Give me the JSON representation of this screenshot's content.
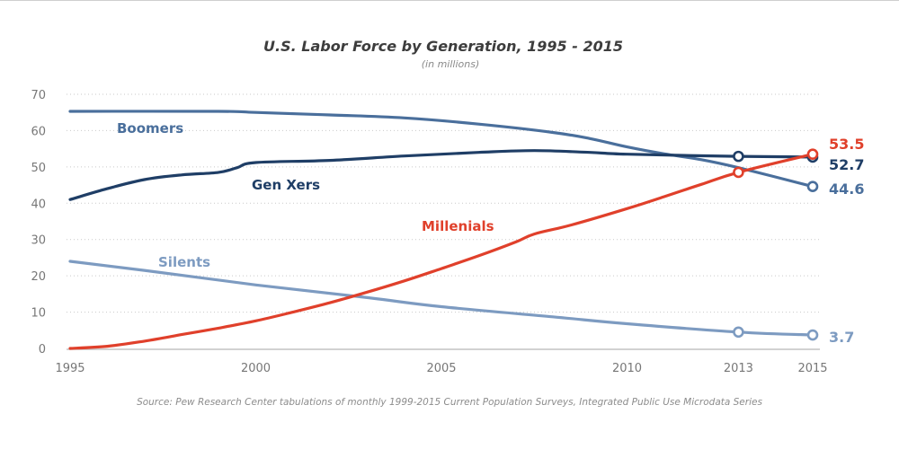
{
  "chart_data": {
    "type": "line",
    "title": "U.S. Labor Force by Generation, 1995 - 2015",
    "subtitle": "(in millions)",
    "xlabel": "",
    "ylabel": "",
    "xlim": [
      1995,
      2015
    ],
    "ylim": [
      0,
      70
    ],
    "x_ticks": [
      1995,
      2000,
      2005,
      2010,
      2013,
      2015
    ],
    "y_ticks": [
      0,
      10,
      20,
      30,
      40,
      50,
      60,
      70
    ],
    "grid": "horizontal-dotted",
    "legend": "inline-labels",
    "series": [
      {
        "name": "Boomers",
        "key": "boomers",
        "color": "#4a6f9c",
        "x": [
          1995,
          1999,
          2000,
          2002,
          2004,
          2006,
          2008,
          2009,
          2010,
          2011,
          2012,
          2013,
          2015
        ],
        "values": [
          65.3,
          65.3,
          65.0,
          64.3,
          63.5,
          61.8,
          59.5,
          57.8,
          55.5,
          53.6,
          52.0,
          49.8,
          44.6
        ],
        "markers": [
          {
            "x": 2015,
            "y": 44.6
          }
        ],
        "end_label": "44.6"
      },
      {
        "name": "Gen Xers",
        "key": "genx",
        "color": "#1f3e66",
        "x": [
          1995,
          1996,
          1997,
          1998,
          1999,
          1999.5,
          2000,
          2002,
          2004,
          2006,
          2007.5,
          2009,
          2010,
          2013,
          2015
        ],
        "values": [
          41.0,
          44.0,
          46.5,
          47.8,
          48.5,
          49.8,
          51.2,
          51.8,
          53.0,
          54.0,
          54.5,
          54.0,
          53.5,
          52.9,
          52.7
        ],
        "markers": [
          {
            "x": 2013,
            "y": 52.9
          },
          {
            "x": 2015,
            "y": 52.7
          }
        ],
        "end_label": "52.7"
      },
      {
        "name": "Millenials",
        "key": "millenials",
        "color": "#e0402b",
        "x": [
          1995,
          1996,
          1997,
          1998,
          1999,
          2000,
          2001,
          2002,
          2003,
          2004,
          2005,
          2006,
          2007,
          2007.5,
          2008.5,
          2010,
          2011,
          2012,
          2013,
          2015
        ],
        "values": [
          0.0,
          0.6,
          2.0,
          3.8,
          5.6,
          7.6,
          10.0,
          12.6,
          15.5,
          18.6,
          22.0,
          25.5,
          29.3,
          31.5,
          34.0,
          38.5,
          41.8,
          45.2,
          48.5,
          53.5
        ],
        "markers": [
          {
            "x": 2013,
            "y": 48.5
          },
          {
            "x": 2015,
            "y": 53.5
          }
        ],
        "end_label": "53.5"
      },
      {
        "name": "Silents",
        "key": "silents",
        "color": "#7d9bc1",
        "x": [
          1995,
          1997,
          2000,
          2003,
          2005,
          2008,
          2010,
          2013,
          2015
        ],
        "values": [
          24.0,
          21.5,
          17.5,
          14.0,
          11.5,
          8.7,
          6.8,
          4.5,
          3.7
        ],
        "markers": [
          {
            "x": 2013,
            "y": 4.5
          },
          {
            "x": 2015,
            "y": 3.7
          }
        ],
        "end_label": "3.7"
      }
    ],
    "annotations": {
      "boomers": "Boomers",
      "genx": "Gen Xers",
      "millenials": "Millenials",
      "silents": "Silents"
    },
    "source": "Source: Pew Research Center tabulations of monthly 1999-2015 Current Population Surveys, Integrated Public Use Microdata Series"
  }
}
